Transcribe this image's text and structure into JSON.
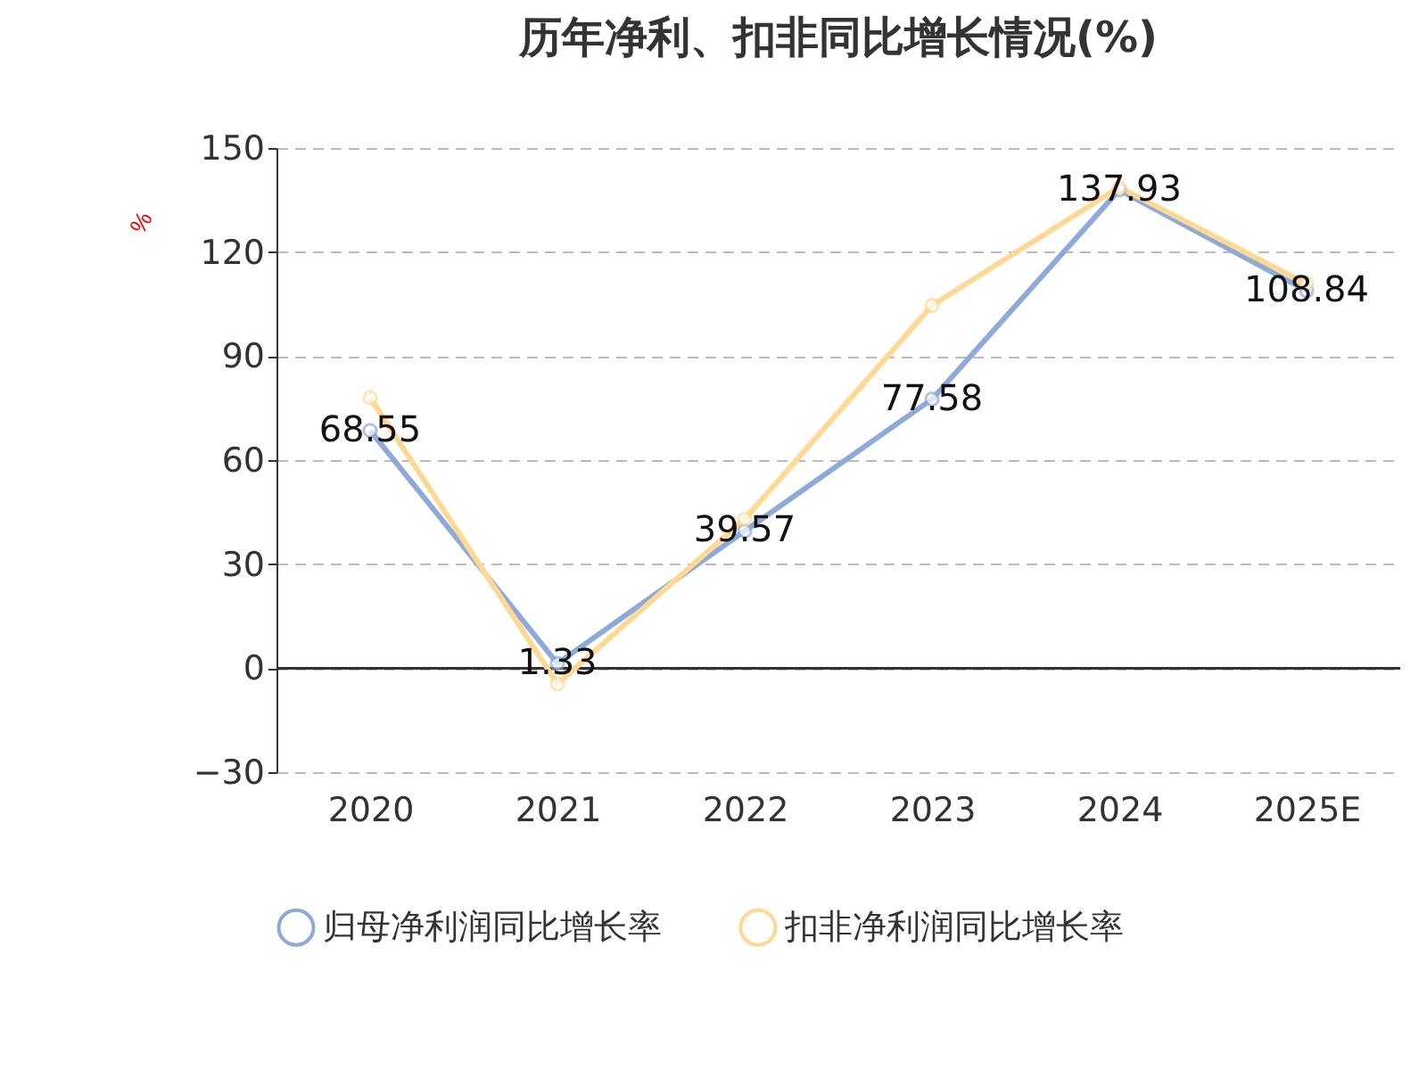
{
  "chart_data": {
    "type": "line",
    "title": "历年净利、扣非同比增长情况(%)",
    "ylabel": "%",
    "categories": [
      "2020",
      "2021",
      "2022",
      "2023",
      "2024",
      "2025E"
    ],
    "series": [
      {
        "name": "归母净利润同比增长率",
        "color": "#8eaadb",
        "values": [
          68.55,
          1.33,
          39.57,
          77.58,
          137.93,
          108.84
        ],
        "value_labels": [
          "68.55",
          "1.33",
          "39.57",
          "77.58",
          "137.93",
          "108.84"
        ]
      },
      {
        "name": "扣非净利润同比增长率",
        "color": "#ffd993",
        "values": [
          78,
          -4.5,
          43,
          104.6,
          138.7,
          110.8
        ]
      }
    ],
    "ylim": [
      -30,
      150
    ],
    "yticks": [
      -30,
      0,
      30,
      60,
      90,
      120,
      150
    ],
    "grid": "y",
    "legend": "bottom",
    "marker": "circle",
    "line_style": "solid"
  }
}
